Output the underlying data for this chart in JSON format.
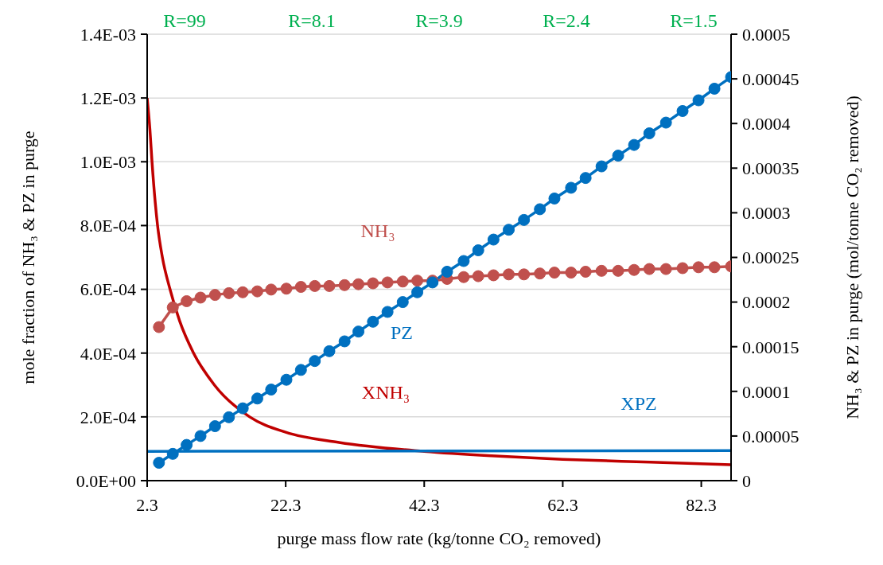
{
  "chart_data": {
    "type": "line",
    "xlabel": "purge mass flow rate (kg/tonne CO₂ removed)",
    "ylabel": "mole fraction of  NH₃ & PZ  in purge",
    "y2label": "NH₃ & PZ in purge (mol/tonne CO₂ removed)",
    "xlim": [
      2.3,
      86.6
    ],
    "xticks": [
      2.3,
      22.3,
      42.3,
      62.3,
      82.3
    ],
    "ylim": [
      0,
      0.0014
    ],
    "yticks": [
      {
        "value": 0,
        "label": "0.0E+00"
      },
      {
        "value": 0.0002,
        "label": "2.0E-04"
      },
      {
        "value": 0.0004,
        "label": "4.0E-04"
      },
      {
        "value": 0.0006,
        "label": "6.0E-04"
      },
      {
        "value": 0.0008,
        "label": "8.0E-04"
      },
      {
        "value": 0.001,
        "label": "1.0E-03"
      },
      {
        "value": 0.0012,
        "label": "1.2E-03"
      },
      {
        "value": 0.0014,
        "label": "1.4E-03"
      }
    ],
    "y2lim": [
      0,
      0.0005
    ],
    "y2ticks": [
      0,
      {
        "value": 5e-05,
        "label": "0.00005"
      },
      0.0001,
      0.00015,
      0.0002,
      0.00025,
      0.0003,
      0.00035,
      0.0004,
      0.00045,
      0.0005
    ],
    "grid": "y",
    "annotations": [
      "R=99",
      "R=8.1",
      "R=3.9",
      "R=2.4",
      "R=1.5"
    ],
    "series": [
      {
        "name": "NH₃",
        "color": "#c0504d",
        "axis": "y2",
        "marker": "circle",
        "x": [
          4.0,
          6.0,
          8.0,
          10.0,
          12.1,
          14.1,
          16.1,
          18.2,
          20.2,
          22.4,
          24.5,
          26.5,
          28.6,
          30.8,
          32.8,
          34.9,
          37.0,
          39.2,
          41.3,
          43.5,
          45.6,
          48.0,
          50.1,
          52.3,
          54.5,
          56.7,
          59.0,
          61.1,
          63.5,
          65.6,
          67.9,
          70.3,
          72.6,
          74.8,
          77.2,
          79.6,
          81.9,
          84.2,
          86.6
        ],
        "values": [
          0.000172,
          0.000194,
          0.000201,
          0.000205,
          0.000208,
          0.00021,
          0.000211,
          0.000212,
          0.000214,
          0.000215,
          0.000217,
          0.000218,
          0.000218,
          0.000219,
          0.00022,
          0.000221,
          0.000222,
          0.000223,
          0.000224,
          0.000224,
          0.000226,
          0.000228,
          0.000229,
          0.00023,
          0.000231,
          0.000231,
          0.000232,
          0.000233,
          0.000233,
          0.000234,
          0.000235,
          0.000235,
          0.000236,
          0.000237,
          0.000237,
          0.000238,
          0.000239,
          0.000239,
          0.00024
        ]
      },
      {
        "name": "PZ",
        "color": "#0070c0",
        "axis": "y2",
        "marker": "circle",
        "x": [
          4.0,
          6.0,
          8.0,
          10.0,
          12.1,
          14.1,
          16.1,
          18.2,
          20.2,
          22.4,
          24.5,
          26.5,
          28.6,
          30.8,
          32.8,
          34.9,
          37.0,
          39.2,
          41.3,
          43.5,
          45.6,
          48.0,
          50.1,
          52.3,
          54.5,
          56.7,
          59.0,
          61.1,
          63.5,
          65.6,
          67.9,
          70.3,
          72.6,
          74.8,
          77.2,
          79.6,
          81.9,
          84.2,
          86.6
        ],
        "values": [
          2e-05,
          3e-05,
          4e-05,
          5e-05,
          6.1e-05,
          7.1e-05,
          8.1e-05,
          9.2e-05,
          0.000102,
          0.000113,
          0.000124,
          0.000134,
          0.000145,
          0.000156,
          0.000167,
          0.000178,
          0.000189,
          0.0002,
          0.000211,
          0.000222,
          0.000234,
          0.000246,
          0.000258,
          0.00027,
          0.000281,
          0.000292,
          0.000304,
          0.000316,
          0.000328,
          0.000339,
          0.000352,
          0.000364,
          0.000376,
          0.000389,
          0.000401,
          0.000414,
          0.000426,
          0.000439,
          0.000452
        ]
      },
      {
        "name": "XNH₃",
        "color": "#c00000",
        "marker": "none",
        "x": [
          2.3,
          2.7,
          3.0,
          3.8,
          4.5,
          5.6,
          7.0,
          9.0,
          12,
          17.1,
          22.3,
          30,
          42.3,
          52,
          62.3,
          75,
          86.6
        ],
        "values": [
          0.0012,
          0.0011,
          0.001,
          0.0008,
          0.0007,
          0.0006,
          0.0005,
          0.0004,
          0.0003,
          0.0002,
          0.000152,
          0.00012,
          9.2e-05,
          7.8e-05,
          6.7e-05,
          5.8e-05,
          5e-05
        ]
      },
      {
        "name": "XPZ",
        "color": "#0070c0",
        "marker": "none",
        "x": [
          2.3,
          86.6
        ],
        "values": [
          9.2e-05,
          9.4e-05
        ]
      }
    ]
  }
}
